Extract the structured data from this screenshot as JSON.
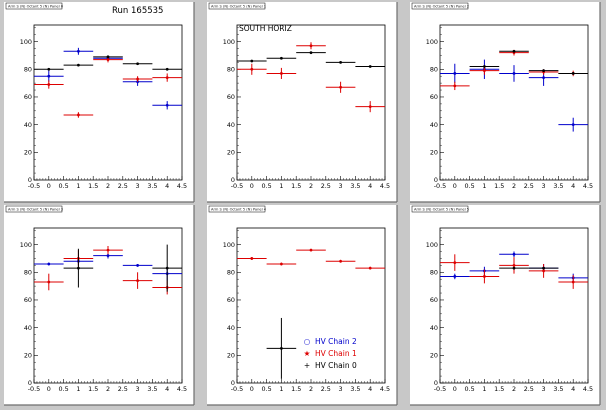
{
  "figure_title": "Run 165535",
  "legend": [
    {
      "symbol": "○",
      "label": "HV Chain 2",
      "color": "#0000cc"
    },
    {
      "symbol": "★",
      "label": "HV Chain 1",
      "color": "#dd0000"
    },
    {
      "symbol": "+",
      "label": "HV Chain 0",
      "color": "#000000"
    }
  ],
  "colors": {
    "background": "#c8c8c8",
    "pad": "#ffffff",
    "chain2": "#0000cc",
    "chain1": "#dd0000",
    "chain0": "#000000"
  },
  "chart_data": [
    {
      "type": "scatter",
      "header": "Arm S (N) Octant 5 (N) Panel 0",
      "pad_label": "",
      "x_ticks": [
        "-0.5",
        "0",
        "0.5",
        "1",
        "1.5",
        "2",
        "2.5",
        "3",
        "3.5",
        "4",
        "4.5"
      ],
      "y_ticks": [
        "0",
        "20",
        "40",
        "60",
        "80",
        "100"
      ],
      "xlim": [
        -0.5,
        4.5
      ],
      "ylim": [
        0,
        112
      ],
      "series": [
        {
          "name": "HV Chain 2",
          "color": "#0000cc",
          "points": [
            [
              0,
              75,
              4
            ],
            [
              1,
              93,
              2.5
            ],
            [
              2,
              88,
              2
            ],
            [
              3,
              71,
              3
            ],
            [
              4,
              54,
              3
            ]
          ]
        },
        {
          "name": "HV Chain 1",
          "color": "#dd0000",
          "points": [
            [
              0,
              69,
              3
            ],
            [
              1,
              47,
              2
            ],
            [
              2,
              87,
              2
            ],
            [
              3,
              73,
              2
            ],
            [
              4,
              74,
              3
            ]
          ]
        },
        {
          "name": "HV Chain 0",
          "color": "#000000",
          "points": [
            [
              0,
              80,
              0.5
            ],
            [
              1,
              83,
              0.5
            ],
            [
              2,
              89,
              0.5
            ],
            [
              3,
              84,
              0.5
            ],
            [
              4,
              80,
              0.5
            ]
          ]
        }
      ]
    },
    {
      "type": "scatter",
      "header": "Arm S (N) Octant 5 (N) Panel 1",
      "pad_label": "SOUTH HORIZ",
      "x_ticks": [
        "-0.5",
        "0",
        "0.5",
        "1",
        "1.5",
        "2",
        "2.5",
        "3",
        "3.5",
        "4",
        "4.5"
      ],
      "y_ticks": [
        "0",
        "20",
        "40",
        "60",
        "80",
        "100"
      ],
      "xlim": [
        -0.5,
        4.5
      ],
      "ylim": [
        0,
        112
      ],
      "series": [
        {
          "name": "HV Chain 1",
          "color": "#dd0000",
          "points": [
            [
              0,
              80,
              4
            ],
            [
              1,
              77,
              4
            ],
            [
              2,
              97,
              2.5
            ],
            [
              3,
              67,
              4
            ],
            [
              4,
              53,
              4
            ]
          ]
        },
        {
          "name": "HV Chain 0",
          "color": "#000000",
          "points": [
            [
              0,
              86,
              0.5
            ],
            [
              1,
              88,
              0.5
            ],
            [
              2,
              92,
              0.5
            ],
            [
              3,
              85,
              0.5
            ],
            [
              4,
              82,
              0.5
            ]
          ]
        }
      ]
    },
    {
      "type": "scatter",
      "header": "Arm S (N) Octant 5 (N) Panel 2",
      "pad_label": "",
      "x_ticks": [
        "-0.5",
        "0",
        "0.5",
        "1",
        "1.5",
        "2",
        "2.5",
        "3",
        "3.5",
        "4",
        "4.5"
      ],
      "y_ticks": [
        "0",
        "20",
        "40",
        "60",
        "80",
        "100"
      ],
      "xlim": [
        -0.5,
        4.5
      ],
      "ylim": [
        0,
        112
      ],
      "series": [
        {
          "name": "HV Chain 2",
          "color": "#0000cc",
          "points": [
            [
              0,
              77,
              7
            ],
            [
              1,
              80,
              7
            ],
            [
              2,
              77,
              6
            ],
            [
              3,
              74,
              6
            ],
            [
              4,
              40,
              5
            ]
          ]
        },
        {
          "name": "HV Chain 1",
          "color": "#dd0000",
          "points": [
            [
              0,
              68,
              3
            ],
            [
              1,
              79,
              3
            ],
            [
              2,
              92,
              2
            ],
            [
              3,
              78,
              2
            ],
            [
              4,
              77,
              2
            ]
          ]
        },
        {
          "name": "HV Chain 0",
          "color": "#000000",
          "points": [
            [
              1,
              82,
              0.5
            ],
            [
              2,
              93,
              0.5
            ],
            [
              3,
              79,
              0.5
            ],
            [
              4,
              77,
              0.5
            ]
          ]
        }
      ]
    },
    {
      "type": "scatter",
      "header": "Arm S (N) Octant 5 (N) Panel 3",
      "pad_label": "",
      "x_ticks": [
        "-0.5",
        "0",
        "0.5",
        "1",
        "1.5",
        "2",
        "2.5",
        "3",
        "3.5",
        "4",
        "4.5"
      ],
      "y_ticks": [
        "0",
        "20",
        "40",
        "60",
        "80",
        "100"
      ],
      "xlim": [
        -0.5,
        4.5
      ],
      "ylim": [
        0,
        112
      ],
      "series": [
        {
          "name": "HV Chain 2",
          "color": "#0000cc",
          "points": [
            [
              0,
              86,
              1
            ],
            [
              1,
              88,
              3
            ],
            [
              2,
              92,
              2
            ],
            [
              3,
              85,
              1
            ],
            [
              4,
              79,
              5
            ]
          ]
        },
        {
          "name": "HV Chain 1",
          "color": "#dd0000",
          "points": [
            [
              0,
              73,
              6
            ],
            [
              1,
              90,
              6
            ],
            [
              2,
              96,
              3
            ],
            [
              3,
              74,
              6
            ],
            [
              4,
              69,
              5
            ]
          ]
        },
        {
          "name": "HV Chain 0",
          "color": "#000000",
          "points": [
            [
              1,
              83,
              14
            ],
            [
              4,
              83,
              17
            ]
          ]
        }
      ]
    },
    {
      "type": "scatter",
      "header": "Arm S (N) Octant 5 (N) Panel 4",
      "pad_label": "",
      "x_ticks": [
        "-0.5",
        "0",
        "0.5",
        "1",
        "1.5",
        "2",
        "2.5",
        "3",
        "3.5",
        "4",
        "4.5"
      ],
      "y_ticks": [
        "0",
        "20",
        "40",
        "60",
        "80",
        "100"
      ],
      "xlim": [
        -0.5,
        4.5
      ],
      "ylim": [
        0,
        112
      ],
      "series": [
        {
          "name": "HV Chain 1",
          "color": "#dd0000",
          "points": [
            [
              0,
              90,
              1
            ],
            [
              1,
              86,
              1
            ],
            [
              2,
              96,
              1
            ],
            [
              3,
              88,
              1
            ],
            [
              4,
              83,
              1
            ]
          ]
        },
        {
          "name": "HV Chain 0",
          "color": "#000000",
          "points": [
            [
              1,
              25,
              22
            ]
          ]
        }
      ]
    },
    {
      "type": "scatter",
      "header": "Arm S (N) Octant 5 (N) Panel 5",
      "pad_label": "",
      "x_ticks": [
        "-0.5",
        "0",
        "0.5",
        "1",
        "1.5",
        "2",
        "2.5",
        "3",
        "3.5",
        "4",
        "4.5"
      ],
      "y_ticks": [
        "0",
        "20",
        "40",
        "60",
        "80",
        "100"
      ],
      "xlim": [
        -0.5,
        4.5
      ],
      "ylim": [
        0,
        112
      ],
      "series": [
        {
          "name": "HV Chain 2",
          "color": "#0000cc",
          "points": [
            [
              0,
              77,
              2
            ],
            [
              1,
              81,
              3
            ],
            [
              2,
              93,
              2
            ],
            [
              3,
              83,
              3
            ],
            [
              4,
              76,
              3
            ]
          ]
        },
        {
          "name": "HV Chain 1",
          "color": "#dd0000",
          "points": [
            [
              0,
              87,
              6
            ],
            [
              1,
              77,
              5
            ],
            [
              2,
              85,
              6
            ],
            [
              3,
              81,
              5
            ],
            [
              4,
              73,
              5
            ]
          ]
        },
        {
          "name": "HV Chain 0",
          "color": "#000000",
          "points": [
            [
              2,
              83,
              0.5
            ],
            [
              3,
              83,
              0.5
            ]
          ]
        }
      ]
    }
  ]
}
